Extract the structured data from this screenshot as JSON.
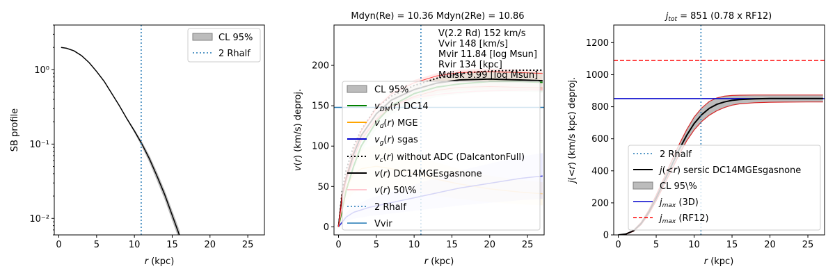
{
  "chart_data": [
    {
      "type": "line",
      "panel": "sb",
      "title": "",
      "xlabel": "r (kpc)",
      "ylabel": "SB profile",
      "xlim": [
        -0.6,
        27.2
      ],
      "ylim": [
        0.006,
        4.0
      ],
      "yscale": "log",
      "xticks": [
        0,
        5,
        10,
        15,
        20,
        25
      ],
      "yticks": [
        0.01,
        0.1,
        1
      ],
      "ytick_labels": [
        "10⁻²",
        "10⁻¹",
        "10⁰"
      ],
      "rhalf2": 10.9,
      "series": [
        {
          "name": "SB",
          "color": "#000000",
          "x": [
            0.3,
            1,
            2,
            3,
            4,
            5,
            6,
            7,
            8,
            9,
            10,
            11,
            12,
            13,
            14,
            15,
            16
          ],
          "y": [
            2.0,
            1.95,
            1.8,
            1.55,
            1.25,
            0.95,
            0.7,
            0.48,
            0.33,
            0.22,
            0.15,
            0.1,
            0.063,
            0.037,
            0.021,
            0.011,
            0.0058
          ]
        }
      ],
      "band": {
        "name": "CL 95%",
        "color": "#a0a0a0",
        "x": [
          9,
          10,
          11,
          12,
          13,
          14,
          15,
          16
        ],
        "lo": [
          0.215,
          0.142,
          0.092,
          0.056,
          0.032,
          0.018,
          0.0093,
          0.0049
        ],
        "hi": [
          0.225,
          0.158,
          0.108,
          0.07,
          0.042,
          0.024,
          0.0128,
          0.0068
        ]
      },
      "legend": [
        "CL 95%",
        "2 Rhalf"
      ],
      "legend_position": "top-right"
    },
    {
      "type": "line",
      "panel": "vel",
      "title": "Mdyn(Re) = 10.36  Mdyn(2Re) = 10.86",
      "xlabel": "r (kpc)",
      "ylabel": "v(r) (km/s) deproj.",
      "xlim": [
        -0.6,
        27.2
      ],
      "ylim": [
        -10,
        250
      ],
      "xticks": [
        0,
        5,
        10,
        15,
        20,
        25
      ],
      "yticks": [
        0,
        50,
        100,
        150,
        200
      ],
      "rhalf2": 10.9,
      "vvir": 148,
      "annotations": [
        "V(2.2 Rd) 152 km/s",
        "Vvir 148 [km/s]",
        "Mvir 11.84 [log Msun]",
        "Rvir 134 [kpc]",
        "Mdisk 9.99 [log Msun]"
      ],
      "series": [
        {
          "name": "v_DM(r) DC14",
          "color": "#008000",
          "x": [
            0,
            1,
            2,
            3,
            5,
            7,
            10,
            13,
            16,
            20,
            24,
            27
          ],
          "y": [
            0,
            45,
            75,
            100,
            130,
            150,
            165,
            173,
            177,
            180,
            180,
            179
          ]
        },
        {
          "name": "v_d(r) MGE",
          "color": "#ffa500",
          "x": [
            0,
            1,
            2,
            3,
            5,
            7,
            10,
            13,
            16,
            20,
            24,
            27
          ],
          "y": [
            0,
            48,
            65,
            72,
            75,
            72,
            66,
            59,
            53,
            47,
            43,
            41
          ]
        },
        {
          "name": "v_g(r) sgas",
          "color": "#0000cc",
          "x": [
            0,
            1,
            2,
            4,
            6,
            8,
            10,
            13,
            16,
            20,
            24,
            27
          ],
          "y": [
            0,
            12,
            18,
            24,
            28,
            32,
            36,
            42,
            48,
            54,
            60,
            63
          ]
        },
        {
          "name": "v_c(r) without ADC (DalcantonFull)",
          "color": "#000000",
          "x": [
            0,
            0.5,
            1,
            2,
            3,
            5,
            7,
            10,
            13,
            16,
            20,
            24,
            27
          ],
          "y": [
            0,
            45,
            70,
            100,
            120,
            148,
            162,
            175,
            184,
            190,
            193,
            194,
            194
          ]
        },
        {
          "name": "v(r) DC14MGEsgasnone",
          "color": "#000000",
          "x": [
            0,
            0.5,
            1,
            2,
            3,
            5,
            7,
            10,
            13,
            16,
            20,
            24,
            27
          ],
          "y": [
            0,
            40,
            60,
            90,
            113,
            140,
            157,
            170,
            178,
            182,
            183,
            182,
            181
          ]
        },
        {
          "name": "v(r) 50\\%",
          "color": "#ffb6c1",
          "x": [
            0,
            1,
            3,
            6,
            10,
            14,
            18,
            22,
            27
          ],
          "y": [
            0,
            55,
            110,
            145,
            160,
            165,
            168,
            169,
            170
          ]
        }
      ],
      "legend": [
        "CL 95%",
        "v_DM(r) DC14",
        "v_d(r) MGE",
        "v_g(r) sgas",
        "v_c(r) without ADC (DalcantonFull)",
        "v(r) DC14MGEsgasnone",
        "v(r) 50\\%",
        "2 Rhalf",
        "Vvir"
      ],
      "legend_position": "lower-right"
    },
    {
      "type": "line",
      "panel": "j",
      "title": "j_tot = 851 (0.78 x RF12)",
      "xlabel": "r (kpc)",
      "ylabel": "j(<r) (km/s kpc) deproj.",
      "xlim": [
        -0.6,
        27.2
      ],
      "ylim": [
        0,
        1310
      ],
      "xticks": [
        0,
        5,
        10,
        15,
        20,
        25
      ],
      "yticks": [
        0,
        200,
        400,
        600,
        800,
        1000,
        1200
      ],
      "rhalf2": 10.9,
      "jmax_3d": 851,
      "jmax_rf12": 1090,
      "series": [
        {
          "name": "j(<r) sersic DC14MGEsgasnone",
          "color": "#000000",
          "x": [
            0,
            1,
            2,
            3,
            4,
            5,
            6,
            7,
            8,
            9,
            10,
            11,
            12,
            13,
            14,
            15,
            16,
            18,
            20,
            22,
            25,
            27
          ],
          "y": [
            0,
            5,
            25,
            70,
            140,
            230,
            330,
            430,
            530,
            620,
            695,
            750,
            790,
            815,
            830,
            840,
            845,
            849,
            851,
            851,
            851,
            851
          ]
        }
      ],
      "band": {
        "name": "CL 95\\%",
        "x": [
          0,
          1,
          2,
          3,
          4,
          5,
          6,
          7,
          8,
          9,
          10,
          11,
          12,
          13,
          14,
          15,
          16,
          18,
          20,
          22,
          25,
          27
        ],
        "lo": [
          0,
          4,
          22,
          63,
          128,
          212,
          308,
          402,
          498,
          585,
          655,
          708,
          747,
          775,
          795,
          810,
          818,
          825,
          828,
          829,
          830,
          830
        ],
        "hi": [
          0,
          6,
          28,
          77,
          152,
          248,
          352,
          458,
          562,
          655,
          735,
          792,
          833,
          855,
          866,
          870,
          872,
          873,
          873,
          873,
          873,
          873
        ]
      },
      "legend": [
        "2 Rhalf",
        "j(<r) sersic DC14MGEsgasnone",
        "CL 95\\%",
        "j_max (3D)",
        "j_max (RF12)"
      ],
      "legend_position": "lower-right"
    }
  ]
}
